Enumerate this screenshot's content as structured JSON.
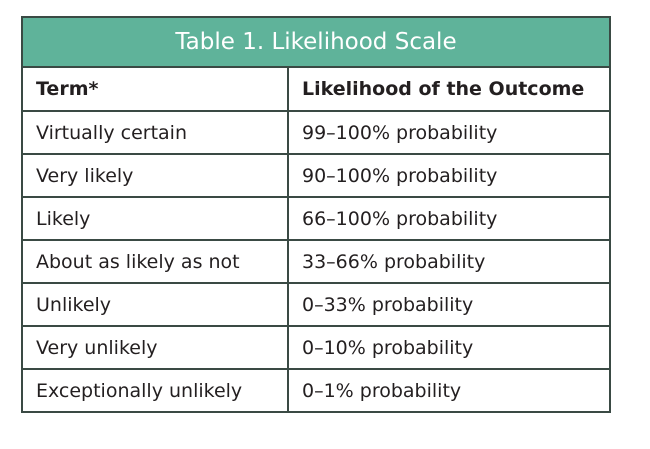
{
  "table": {
    "title": "Table 1. Likelihood Scale",
    "header_color": "#5fb39a",
    "columns": [
      "Term*",
      "Likelihood of the Outcome"
    ],
    "rows": [
      [
        "Virtually certain",
        "99–100% probability"
      ],
      [
        "Very likely",
        "90–100% probability"
      ],
      [
        "Likely",
        "66–100% probability"
      ],
      [
        "About as likely as not",
        "33–66% probability"
      ],
      [
        "Unlikely",
        "0–33% probability"
      ],
      [
        "Very unlikely",
        "0–10% probability"
      ],
      [
        "Exceptionally unlikely",
        "0–1% probability"
      ]
    ]
  }
}
